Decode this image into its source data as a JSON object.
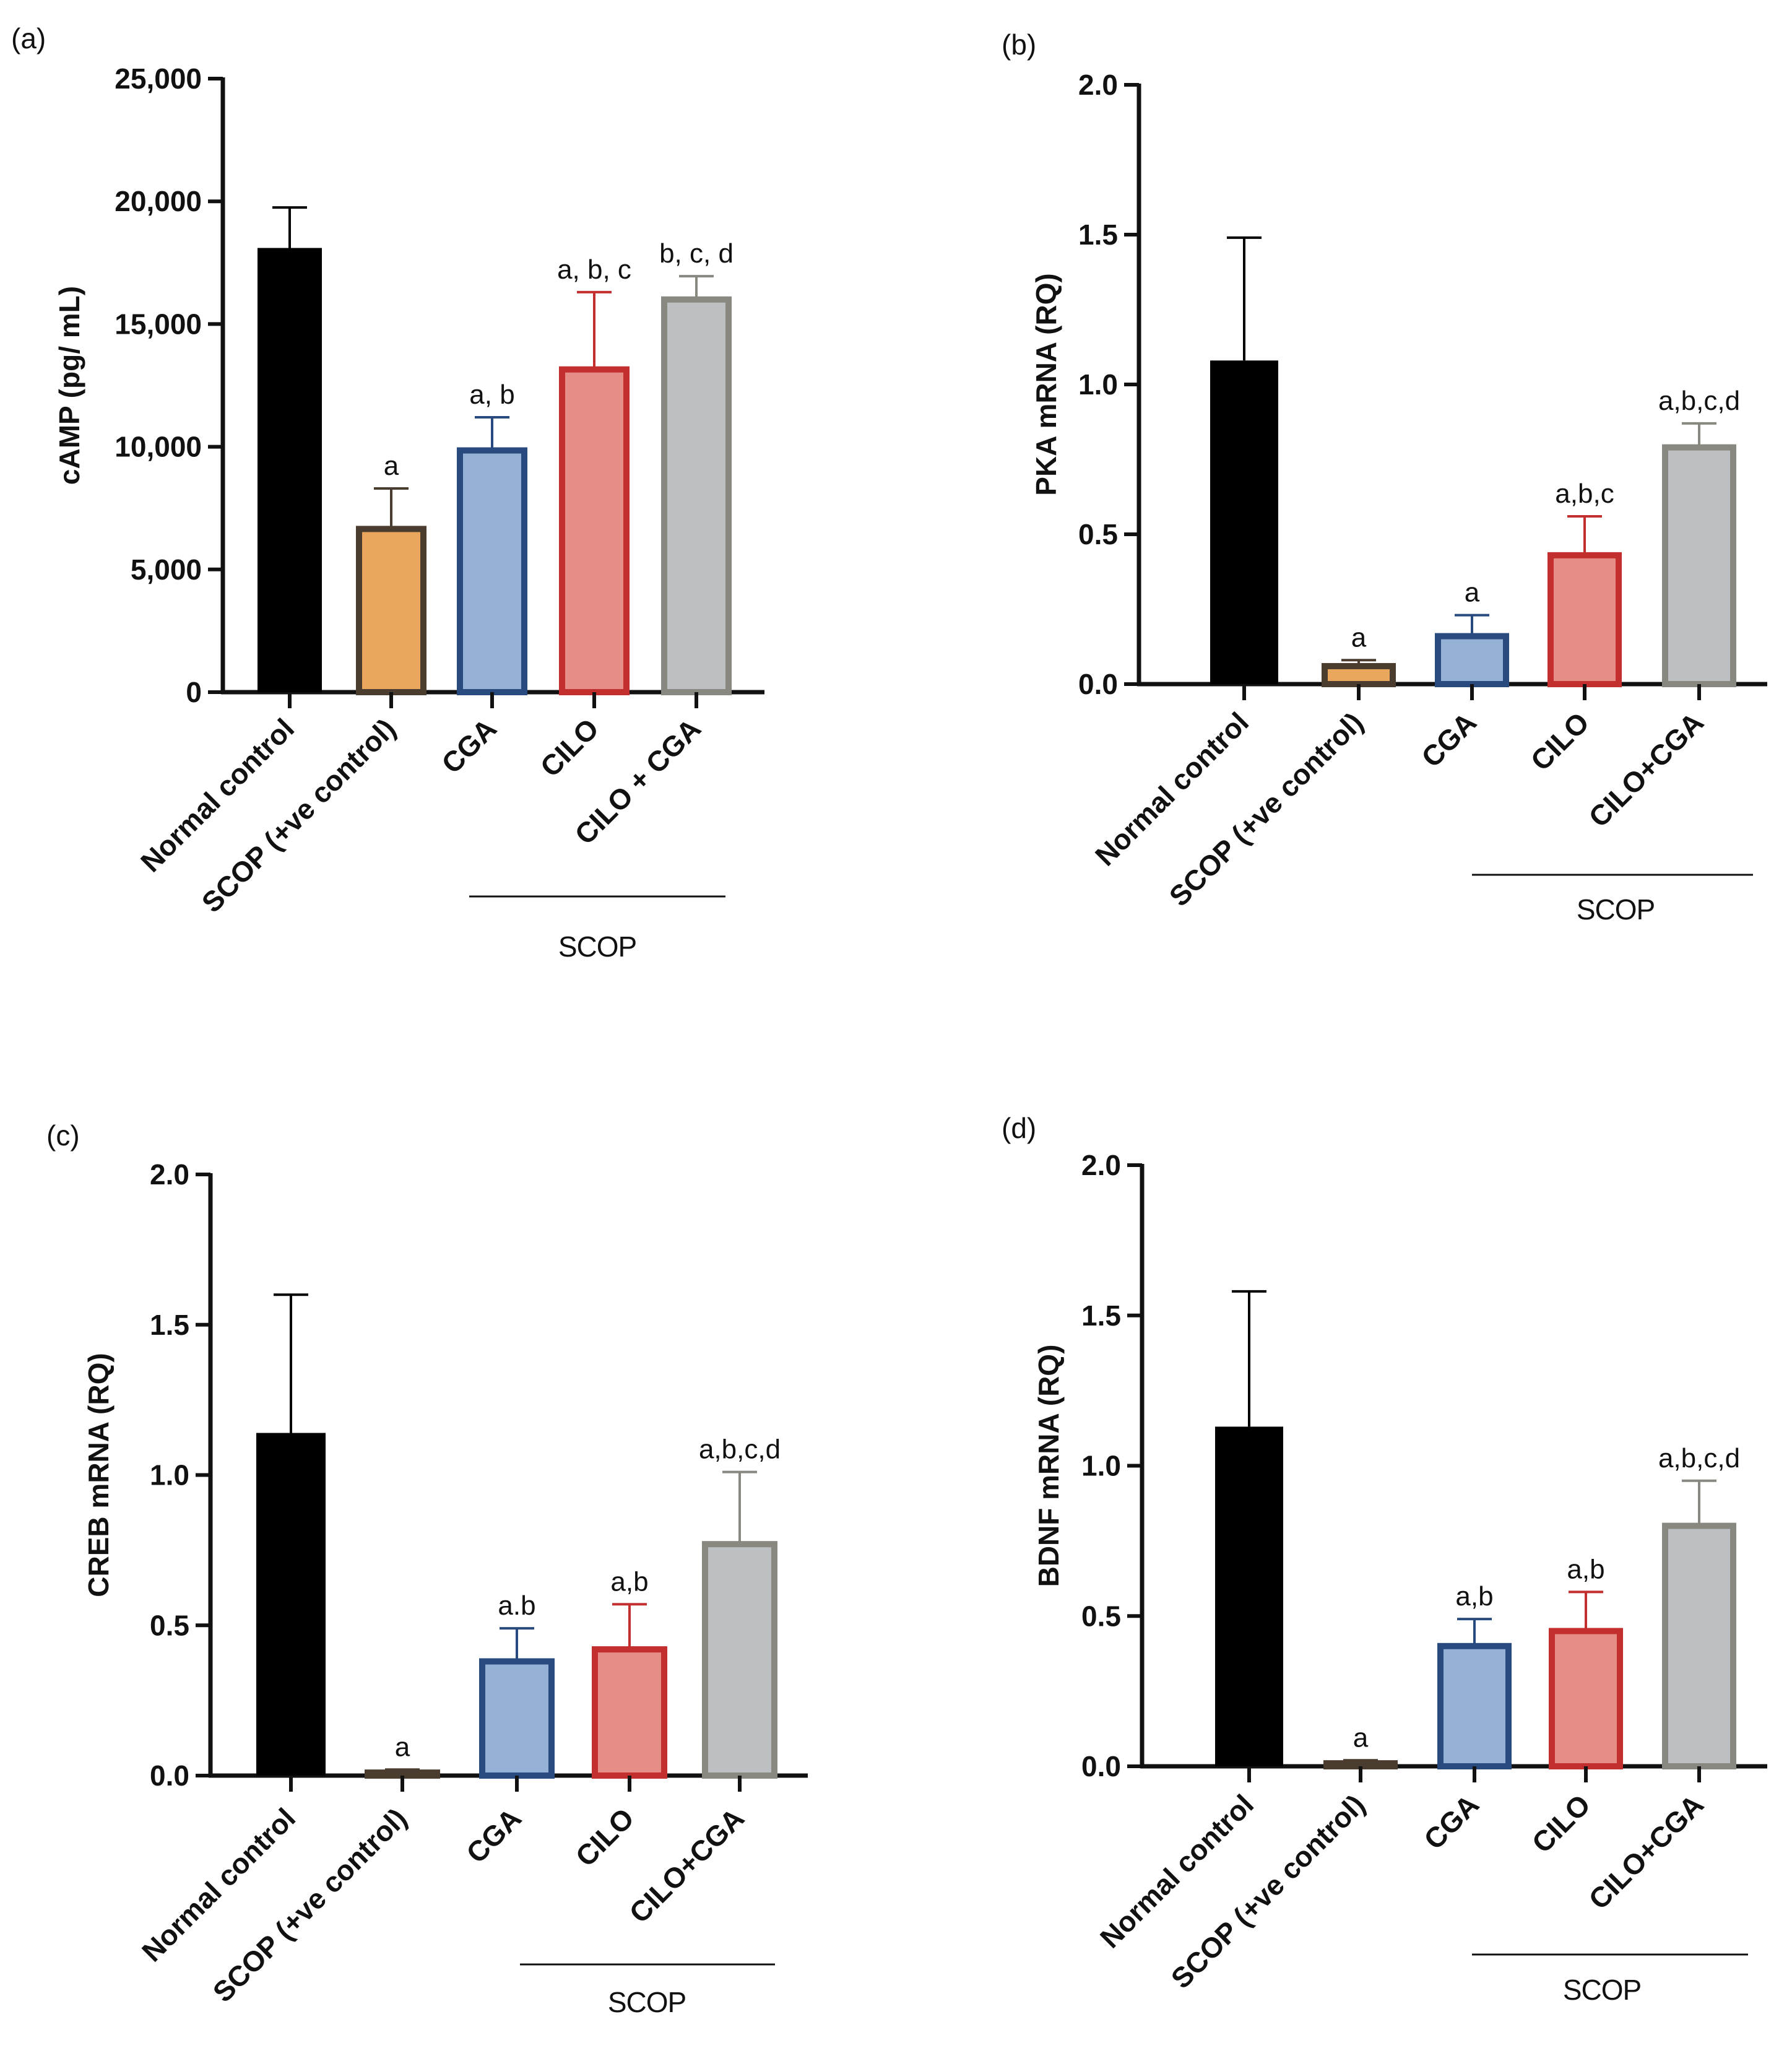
{
  "chart_data": [
    {
      "type": "bar",
      "panel": "(a)",
      "ylabel": "cAMP (pg/ mL)",
      "ylim": [
        0,
        25000
      ],
      "yticks": [
        "0",
        "5,000",
        "10,000",
        "15,000",
        "20,000",
        "25,000"
      ],
      "categories": [
        "Normal control",
        "SCOP (+ve control)",
        "CGA",
        "CILO",
        "CILO + CGA"
      ],
      "values": [
        18100,
        6650,
        9850,
        13150,
        16000
      ],
      "errors": [
        1650,
        1650,
        1350,
        3150,
        950
      ],
      "significance": [
        "",
        "a",
        "a, b",
        "a, b, c",
        "b, c, d"
      ],
      "group_label": "SCOP"
    },
    {
      "type": "bar",
      "panel": "(b)",
      "ylabel": "PKA mRNA (RQ)",
      "ylim": [
        0,
        2.0
      ],
      "yticks": [
        "0.0",
        "0.5",
        "1.0",
        "1.5",
        "2.0"
      ],
      "categories": [
        "Normal control",
        "SCOP (+ve control)",
        "CGA",
        "CILO",
        "CILO+CGA"
      ],
      "values": [
        1.08,
        0.06,
        0.16,
        0.43,
        0.79
      ],
      "errors": [
        0.41,
        0.02,
        0.07,
        0.13,
        0.08
      ],
      "significance": [
        "",
        "a",
        "a",
        "a,b,c",
        "a,b,c,d"
      ],
      "group_label": "SCOP"
    },
    {
      "type": "bar",
      "panel": "(c)",
      "ylabel": "CREB mRNA (RQ)",
      "ylim": [
        0,
        2.0
      ],
      "yticks": [
        "0.0",
        "0.5",
        "1.0",
        "1.5",
        "2.0"
      ],
      "categories": [
        "Normal control",
        "SCOP (+ve control)",
        "CGA",
        "CILO",
        "CILO+CGA"
      ],
      "values": [
        1.14,
        0.01,
        0.38,
        0.42,
        0.77
      ],
      "errors": [
        0.46,
        0.01,
        0.11,
        0.15,
        0.24
      ],
      "significance": [
        "",
        "a",
        "a.b",
        "a,b",
        "a,b,c,d"
      ],
      "group_label": "SCOP"
    },
    {
      "type": "bar",
      "panel": "(d)",
      "ylabel": "BDNF mRNA (RQ)",
      "ylim": [
        0,
        2.0
      ],
      "yticks": [
        "0.0",
        "0.5",
        "1.0",
        "1.5",
        "2.0"
      ],
      "categories": [
        "Normal control",
        "SCOP (+ve control)",
        "CGA",
        "CILO",
        "CILO+CGA"
      ],
      "values": [
        1.13,
        0.01,
        0.4,
        0.45,
        0.8
      ],
      "errors": [
        0.45,
        0.01,
        0.09,
        0.13,
        0.15
      ],
      "significance": [
        "",
        "a",
        "a,b",
        "a,b",
        "a,b,c,d"
      ],
      "group_label": "SCOP"
    }
  ],
  "colors": {
    "bar_fills": [
      "#000000",
      "#e8a75c",
      "#95b1d6",
      "#e58d86",
      "#bdc0c2"
    ],
    "bar_strokes": [
      "#000000",
      "#4a3d2f",
      "#284a7e",
      "#c32f2f",
      "#888880"
    ]
  }
}
